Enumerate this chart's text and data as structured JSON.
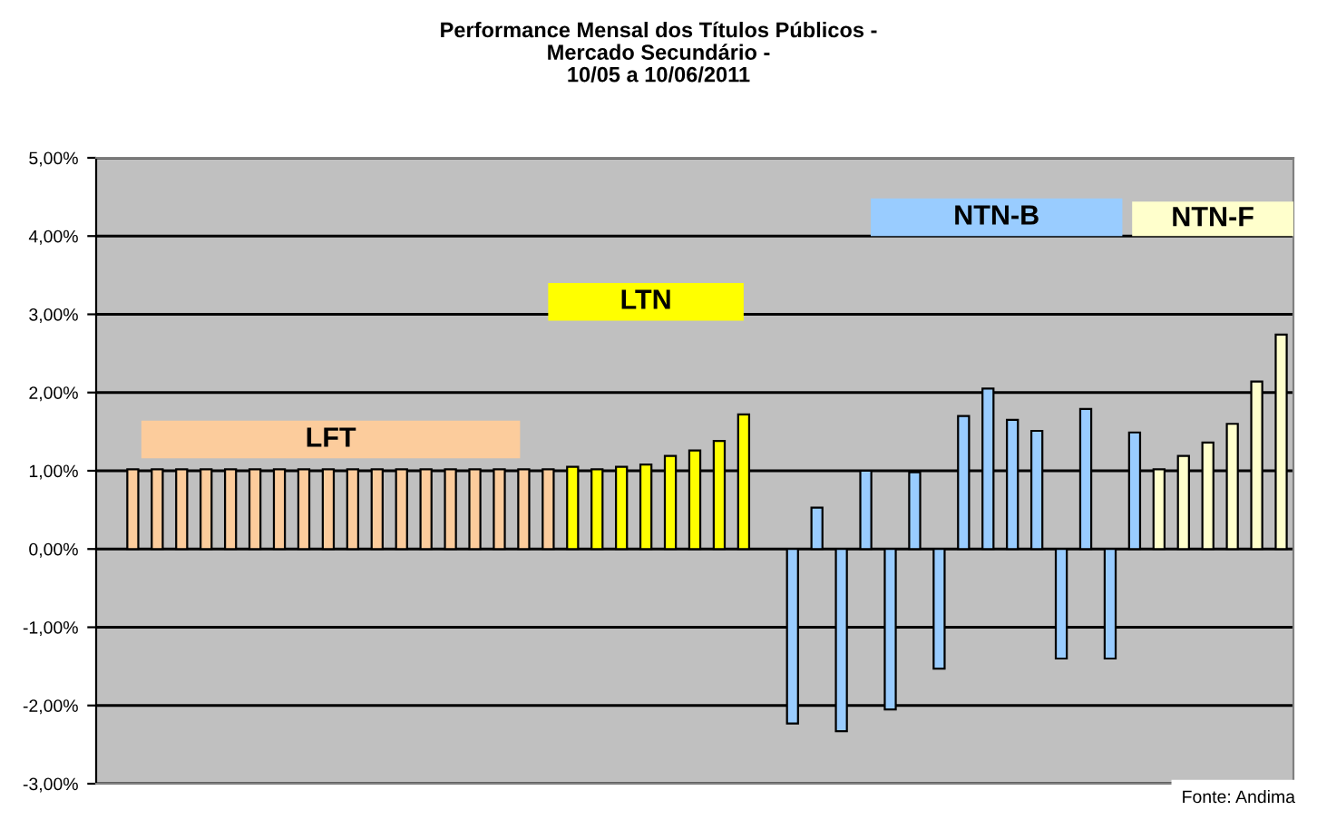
{
  "chart_data": {
    "type": "bar",
    "title": "Performance Mensal dos Títulos Públicos -\nMercado Secundário -\n10/05 a 10/06/2011",
    "categories": [
      null,
      null,
      null,
      null,
      null,
      null,
      null,
      null,
      null,
      null,
      null,
      null,
      null,
      null,
      null,
      null,
      null,
      null,
      null,
      null,
      null,
      null,
      null,
      null,
      null,
      null,
      null,
      null,
      null,
      null,
      null,
      null,
      null,
      null,
      null,
      null,
      null,
      null,
      null,
      null,
      null,
      null,
      null,
      null,
      null,
      null,
      null,
      null,
      null
    ],
    "series": [
      {
        "name": "LFT",
        "color": "#fccc9c",
        "values": [
          null,
          1.02,
          1.02,
          1.02,
          1.02,
          1.02,
          1.02,
          1.02,
          1.02,
          1.02,
          1.02,
          1.02,
          1.02,
          1.02,
          1.02,
          1.02,
          1.02,
          1.02,
          1.02,
          null,
          null,
          null,
          null,
          null,
          null,
          null,
          null,
          null,
          null,
          null,
          null,
          null,
          null,
          null,
          null,
          null,
          null,
          null,
          null,
          null,
          null,
          null,
          null,
          null,
          null,
          null,
          null,
          null,
          null
        ]
      },
      {
        "name": "LTN",
        "color": "#ffff00",
        "values": [
          null,
          null,
          null,
          null,
          null,
          null,
          null,
          null,
          null,
          null,
          null,
          null,
          null,
          null,
          null,
          null,
          null,
          null,
          null,
          1.05,
          1.02,
          1.05,
          1.08,
          1.19,
          1.26,
          1.38,
          1.72,
          null,
          null,
          null,
          null,
          null,
          null,
          null,
          null,
          null,
          null,
          null,
          null,
          null,
          null,
          null,
          null,
          null,
          null,
          null,
          null,
          null,
          null
        ]
      },
      {
        "name": "NTN-B",
        "color": "#99ccff",
        "values": [
          null,
          null,
          null,
          null,
          null,
          null,
          null,
          null,
          null,
          null,
          null,
          null,
          null,
          null,
          null,
          null,
          null,
          null,
          null,
          null,
          null,
          null,
          null,
          null,
          null,
          null,
          null,
          null,
          -2.23,
          0.53,
          -2.33,
          1.0,
          -2.05,
          0.98,
          -1.53,
          1.7,
          2.05,
          1.65,
          1.51,
          -1.4,
          1.79,
          -1.4,
          1.49,
          null,
          null,
          null,
          null,
          null,
          null
        ]
      },
      {
        "name": "NTN-F",
        "color": "#ffffcc",
        "values": [
          null,
          null,
          null,
          null,
          null,
          null,
          null,
          null,
          null,
          null,
          null,
          null,
          null,
          null,
          null,
          null,
          null,
          null,
          null,
          null,
          null,
          null,
          null,
          null,
          null,
          null,
          null,
          null,
          null,
          null,
          null,
          null,
          null,
          null,
          null,
          null,
          null,
          null,
          null,
          null,
          null,
          null,
          null,
          1.02,
          1.19,
          1.36,
          1.6,
          2.14,
          2.74
        ]
      }
    ],
    "ylim": [
      -3,
      5
    ],
    "yticks": [
      {
        "value": -3,
        "label": "-3,00%"
      },
      {
        "value": -2,
        "label": "-2,00%"
      },
      {
        "value": -1,
        "label": "-1,00%"
      },
      {
        "value": 0,
        "label": "0,00%"
      },
      {
        "value": 1,
        "label": "1,00%"
      },
      {
        "value": 2,
        "label": "2,00%"
      },
      {
        "value": 3,
        "label": "3,00%"
      },
      {
        "value": 4,
        "label": "4,00%"
      },
      {
        "value": 5,
        "label": "5,00%"
      }
    ],
    "grid": "y",
    "legend": false,
    "tick_labels": "y",
    "annotations": [
      "Fonte: Andima"
    ]
  }
}
